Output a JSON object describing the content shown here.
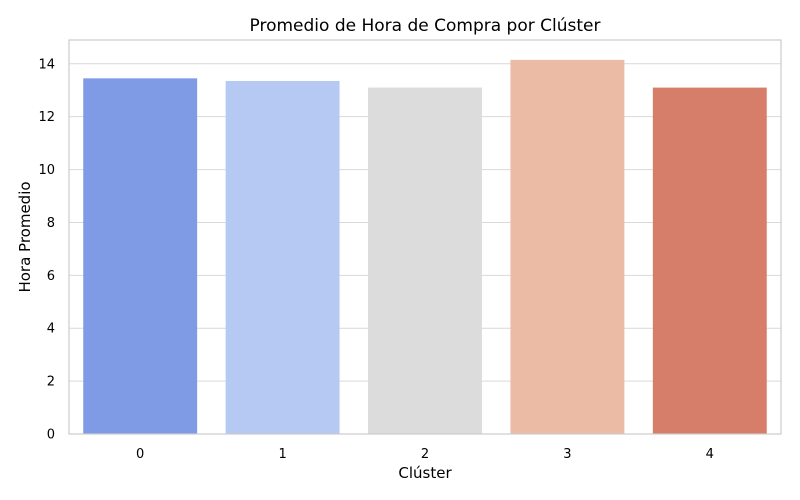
{
  "chart_data": {
    "type": "bar",
    "title": "Promedio de Hora de Compra por Clúster",
    "xlabel": "Clúster",
    "ylabel": "Hora Promedio",
    "categories": [
      "0",
      "1",
      "2",
      "3",
      "4"
    ],
    "values": [
      13.45,
      13.35,
      13.1,
      14.15,
      13.1
    ],
    "colors": [
      "#7f9be6",
      "#b5c9f3",
      "#dcdcdc",
      "#ecbba5",
      "#d67e6a"
    ],
    "ylim": [
      0,
      14.9
    ],
    "yticks": [
      0,
      2,
      4,
      6,
      8,
      10,
      12,
      14
    ],
    "grid": true,
    "legend": "none"
  }
}
